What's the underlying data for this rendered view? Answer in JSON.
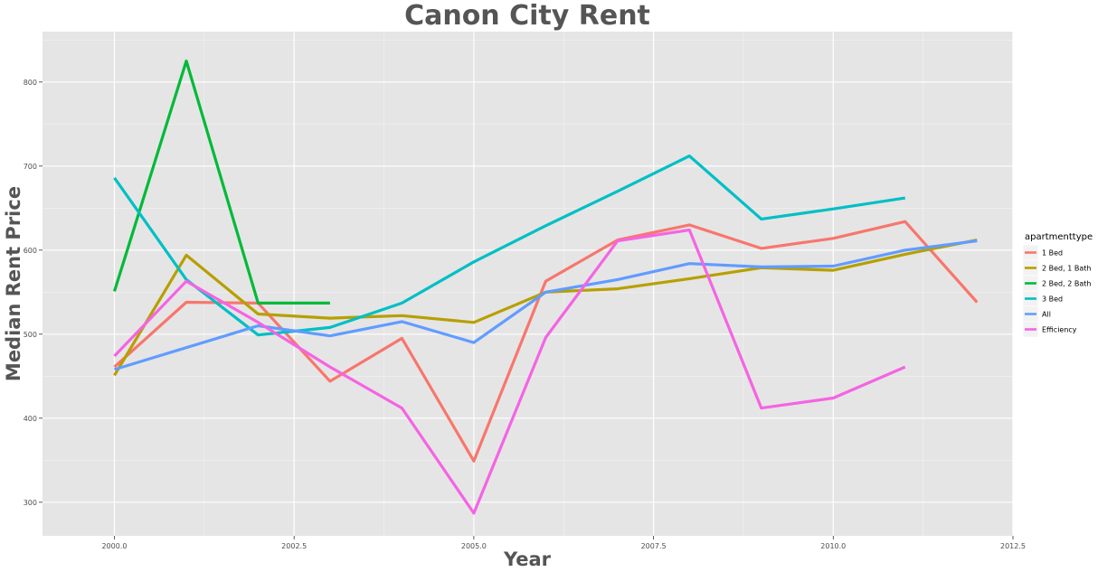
{
  "chart_data": {
    "type": "line",
    "title": "Canon City Rent",
    "xlabel": "Year",
    "ylabel": "Median Rent Price",
    "xlim": [
      1999.0,
      2012.5
    ],
    "ylim": [
      260,
      860
    ],
    "x_ticks": [
      2000.0,
      2002.5,
      2005.0,
      2007.5,
      2010.0,
      2012.5
    ],
    "x_tick_labels": [
      "2000.0",
      "2002.5",
      "2005.0",
      "2007.5",
      "2010.0",
      "2012.5"
    ],
    "y_ticks": [
      300,
      400,
      500,
      600,
      700,
      800
    ],
    "y_tick_labels": [
      "300",
      "400",
      "500",
      "600",
      "700",
      "800"
    ],
    "grid": true,
    "legend": {
      "title": "apartmenttype",
      "position": "right"
    },
    "series": [
      {
        "name": "1 Bed",
        "color": "#f8766d",
        "x": [
          2000,
          2001,
          2002,
          2003,
          2004,
          2005,
          2006,
          2007,
          2008,
          2009,
          2010,
          2011,
          2012
        ],
        "y": [
          461,
          538,
          537,
          444,
          495,
          349,
          563,
          612,
          630,
          602,
          614,
          634,
          538
        ]
      },
      {
        "name": "2 Bed, 1 Bath",
        "color": "#b79f00",
        "x": [
          2000,
          2001,
          2002,
          2003,
          2004,
          2005,
          2006,
          2007,
          2008,
          2009,
          2010,
          2011,
          2012
        ],
        "y": [
          451,
          594,
          524,
          519,
          522,
          514,
          550,
          554,
          566,
          579,
          576,
          595,
          612
        ]
      },
      {
        "name": "2 Bed, 2 Bath",
        "color": "#00ba38",
        "x": [
          2000,
          2001,
          2002,
          2003
        ],
        "y": [
          551,
          825,
          537,
          537
        ]
      },
      {
        "name": "3 Bed",
        "color": "#00bfc4",
        "x": [
          2000,
          2001,
          2002,
          2003,
          2004,
          2005,
          2006,
          2007,
          2008,
          2009,
          2010,
          2011
        ],
        "y": [
          686,
          565,
          499,
          508,
          537,
          586,
          629,
          670,
          712,
          637,
          649,
          662
        ]
      },
      {
        "name": "All",
        "color": "#619cff",
        "x": [
          2000,
          2001,
          2002,
          2003,
          2004,
          2005,
          2006,
          2007,
          2008,
          2009,
          2010,
          2011,
          2012
        ],
        "y": [
          458,
          484,
          510,
          498,
          515,
          490,
          550,
          565,
          584,
          580,
          581,
          600,
          611
        ]
      },
      {
        "name": "Efficiency",
        "color": "#f564e3",
        "x": [
          2000,
          2001,
          2002,
          2003,
          2004,
          2005,
          2006,
          2007,
          2008,
          2009,
          2010,
          2011
        ],
        "y": [
          474,
          563,
          514,
          461,
          412,
          287,
          496,
          611,
          624,
          412,
          424,
          461
        ]
      }
    ]
  }
}
